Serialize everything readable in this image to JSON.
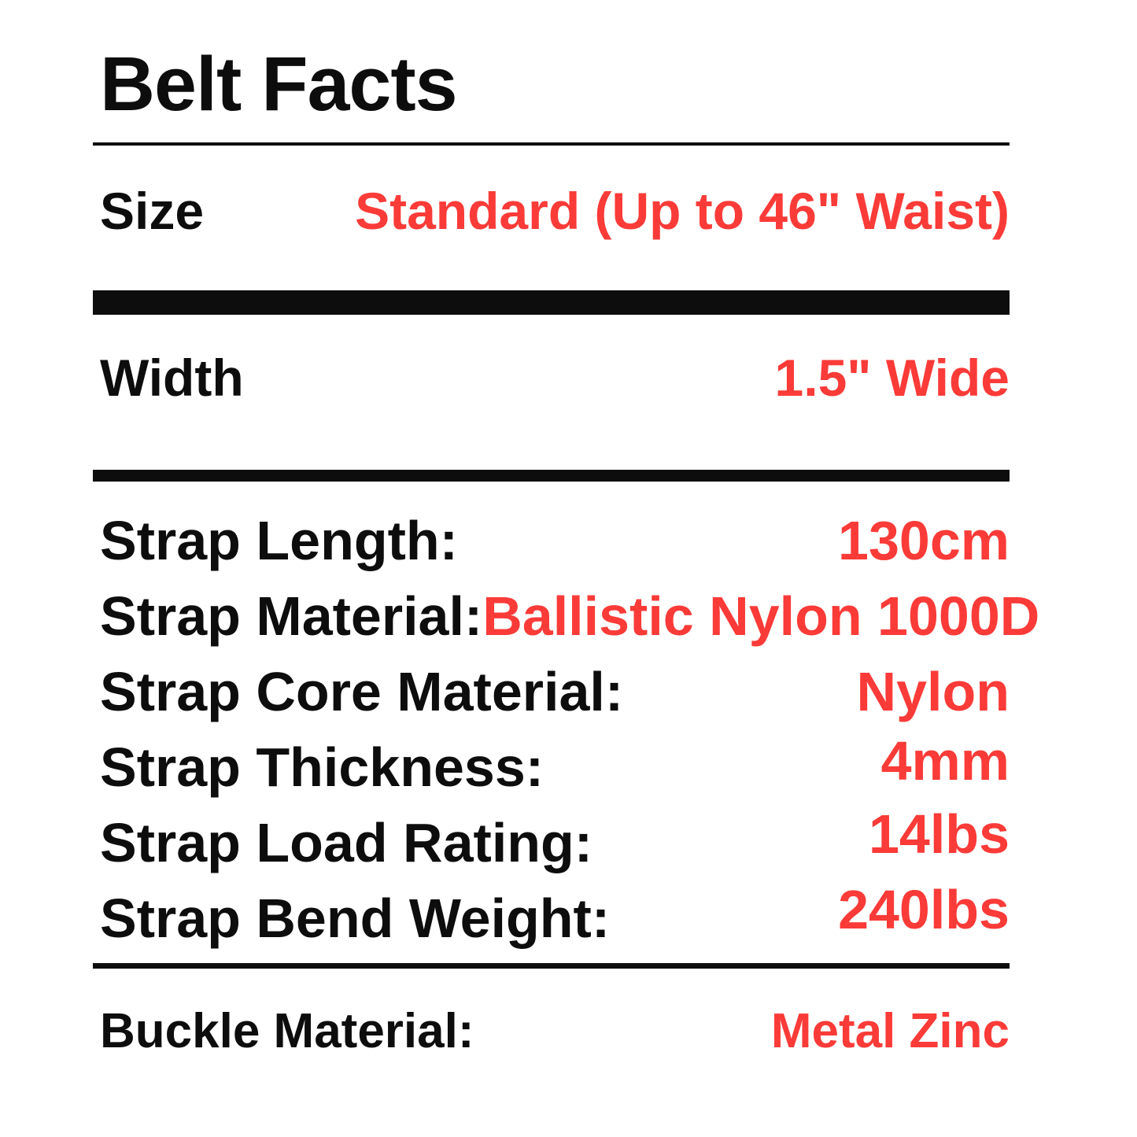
{
  "page": {
    "background": "#ffffff",
    "text_color": "#0d0d0d",
    "accent_red": "#fa3b38"
  },
  "label": {
    "title": "Belt Facts",
    "size_row": {
      "label": "Size",
      "value": "Standard (Up to 46\" Waist)"
    },
    "width_row": {
      "label": "Width",
      "value": "1.5\" Wide"
    },
    "spec_rows": [
      {
        "label": "Strap Length:",
        "value": "130cm"
      },
      {
        "label": "Strap Material:",
        "value": "Ballistic Nylon 1000D"
      },
      {
        "label": "Strap Core Material:",
        "value": "Nylon"
      },
      {
        "label": "Strap Thickness:",
        "value": "4mm"
      },
      {
        "label": "Strap Load Rating:",
        "value": "14lbs"
      },
      {
        "label": "Strap Bend Weight:",
        "value": "240lbs"
      }
    ],
    "buckle_row": {
      "label": "Buckle Material:",
      "value": "Metal Zinc"
    }
  }
}
